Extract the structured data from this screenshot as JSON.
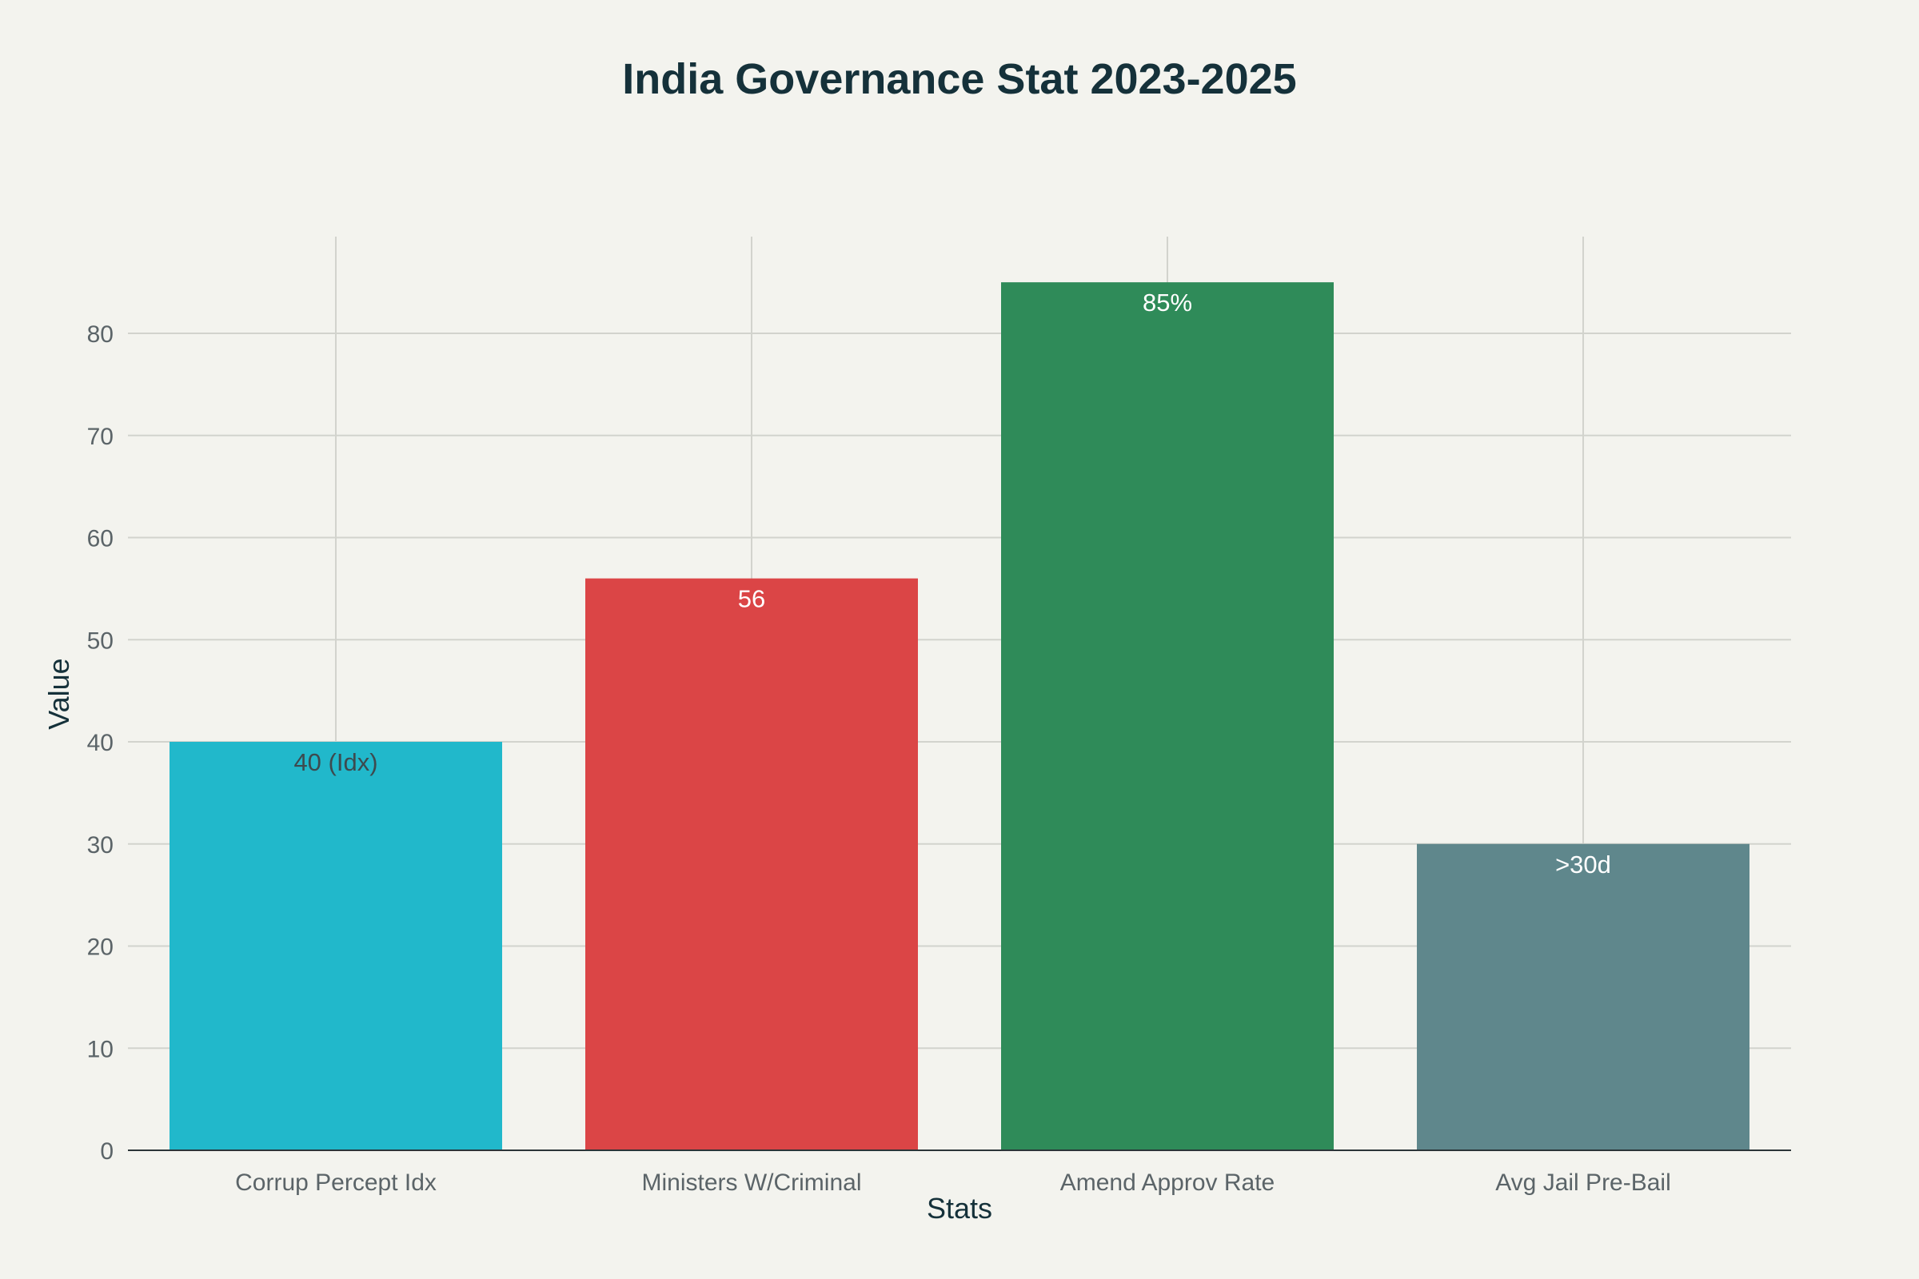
{
  "chart_data": {
    "type": "bar",
    "title": "India Governance Stat 2023-2025",
    "xlabel": "Stats",
    "ylabel": "Value",
    "ylim": [
      0,
      89
    ],
    "yticks": [
      0,
      10,
      20,
      30,
      40,
      50,
      60,
      70,
      80
    ],
    "categories": [
      "Corrup Percept Idx",
      "Ministers W/Criminal",
      "Amend Approv Rate",
      "Avg Jail Pre-Bail"
    ],
    "values": [
      40,
      56,
      85,
      30
    ],
    "data_labels": [
      "40 (Idx)",
      "56",
      "85%",
      ">30d"
    ],
    "colors": [
      "#21b8cb",
      "#db4546",
      "#2f8b59",
      "#5f878c"
    ],
    "label_colors": [
      "#3d4a4f",
      "#ffffff",
      "#ffffff",
      "#ffffff"
    ],
    "grid": true,
    "legend": "none"
  }
}
